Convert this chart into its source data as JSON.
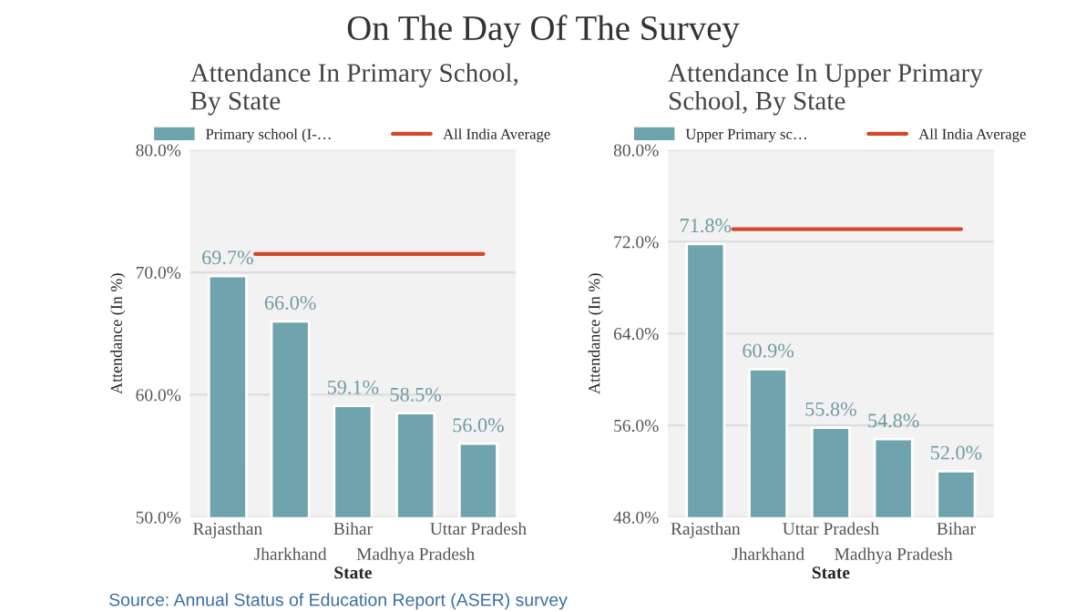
{
  "chart_data": [
    {
      "type": "bar",
      "title": "Attendance In Primary School,\nBy State",
      "xlabel": "State",
      "ylabel": "Attendance (In %)",
      "categories": [
        "Rajasthan",
        "Jharkhand",
        "Bihar",
        "Madhya Pradesh",
        "Uttar Pradesh"
      ],
      "series": [
        {
          "name": "Primary school (I-…",
          "color": "#6fa3ae",
          "values": [
            69.7,
            66.0,
            59.1,
            58.5,
            56.0
          ],
          "value_labels": [
            "69.7%",
            "66.0%",
            "59.1%",
            "58.5%",
            "56.0%"
          ]
        }
      ],
      "ylim": [
        50,
        80
      ],
      "yticks": [
        {
          "value": 50,
          "label": "50.0%"
        },
        {
          "value": 60,
          "label": "60.0%"
        },
        {
          "value": 70,
          "label": "70.0%"
        },
        {
          "value": 80,
          "label": "80.0%"
        }
      ],
      "ref_lines": [
        {
          "axis": "y",
          "value": 71.5,
          "label": "All India Average",
          "color": "#d04a2a"
        }
      ],
      "grid": "y",
      "legend": "top"
    },
    {
      "type": "bar",
      "title": "Attendance In Upper Primary\nSchool, By State",
      "xlabel": "State",
      "ylabel": "Attendance (In %)",
      "categories": [
        "Rajasthan",
        "Jharkhand",
        "Uttar Pradesh",
        "Madhya Pradesh",
        "Bihar"
      ],
      "series": [
        {
          "name": "Upper Primary sc…",
          "color": "#6fa3ae",
          "values": [
            71.8,
            60.9,
            55.8,
            54.8,
            52.0
          ],
          "value_labels": [
            "71.8%",
            "60.9%",
            "55.8%",
            "54.8%",
            "52.0%"
          ]
        }
      ],
      "ylim": [
        48,
        80
      ],
      "yticks": [
        {
          "value": 48,
          "label": "48.0%"
        },
        {
          "value": 56,
          "label": "56.0%"
        },
        {
          "value": 64,
          "label": "64.0%"
        },
        {
          "value": 72,
          "label": "72.0%"
        },
        {
          "value": 80,
          "label": "80.0%"
        }
      ],
      "ref_lines": [
        {
          "axis": "y",
          "value": 73.1,
          "label": "All India Average",
          "color": "#d04a2a"
        }
      ],
      "grid": "y",
      "legend": "top",
      "annotations": [
        "On The Day Of The Survey",
        "Source: Annual Status of Education Report (ASER) survey"
      ]
    }
  ]
}
